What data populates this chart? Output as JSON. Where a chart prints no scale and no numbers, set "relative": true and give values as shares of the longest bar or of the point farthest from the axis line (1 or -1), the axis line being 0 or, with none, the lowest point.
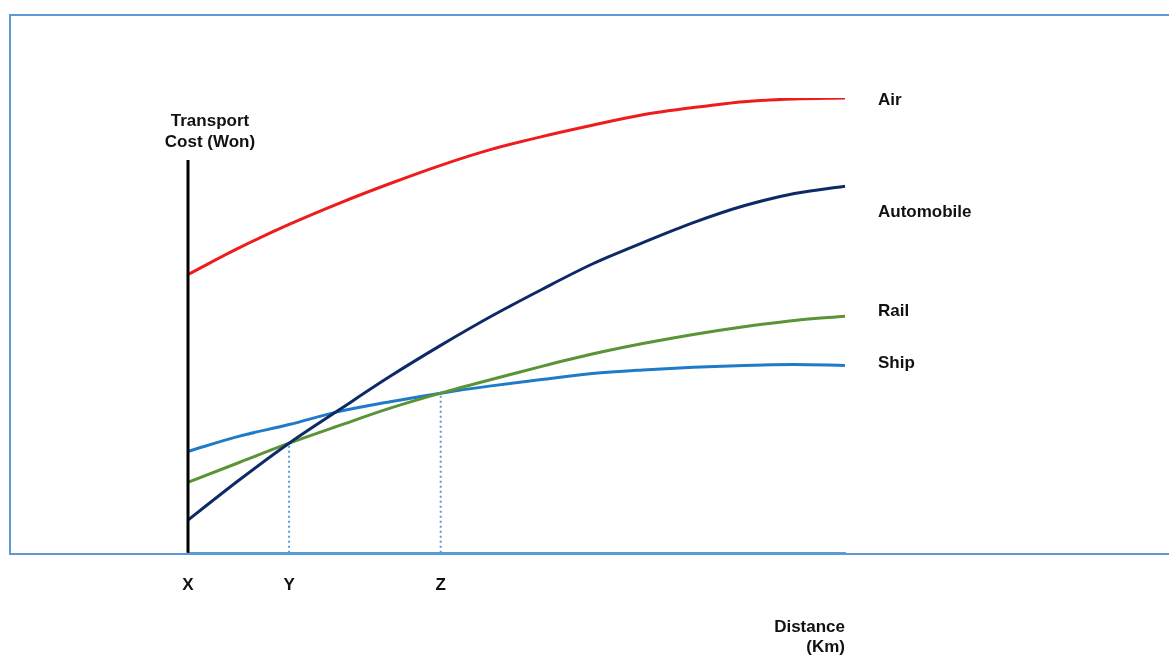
{
  "chart_data": {
    "type": "line",
    "relative": true,
    "xlabel": "Distance (Km)",
    "ylabel": "Transport Cost (Won)",
    "categories": [
      "X",
      null,
      "Y",
      null,
      null,
      "Z",
      null,
      null,
      null,
      null,
      null,
      null,
      null,
      null
    ],
    "series": [
      {
        "name": "Air",
        "color": "#ee1c1c",
        "values": [
          0.612,
          0.67,
          0.722,
          0.769,
          0.812,
          0.852,
          0.887,
          0.915,
          0.94,
          0.963,
          0.979,
          0.992,
          0.998,
          1
        ]
      },
      {
        "name": "Automobile",
        "color": "#0e2a66",
        "values": [
          0.072,
          0.159,
          0.241,
          0.315,
          0.388,
          0.456,
          0.52,
          0.579,
          0.635,
          0.682,
          0.726,
          0.763,
          0.79,
          0.806
        ]
      },
      {
        "name": "Rail",
        "color": "#5b9337",
        "values": [
          0.155,
          0.198,
          0.241,
          0.28,
          0.318,
          0.351,
          0.381,
          0.41,
          0.437,
          0.46,
          0.48,
          0.497,
          0.511,
          0.52
        ]
      },
      {
        "name": "Ship",
        "color": "#1f7bc8",
        "values": [
          0.223,
          0.256,
          0.282,
          0.311,
          0.332,
          0.351,
          0.367,
          0.381,
          0.394,
          0.402,
          0.408,
          0.412,
          0.414,
          0.412
        ]
      }
    ],
    "ref_lines": [
      {
        "axis": "x",
        "value": "Y",
        "color": "#5b9bd5",
        "line_style": "dotted"
      },
      {
        "axis": "x",
        "value": "Z",
        "color": "#5b9bd5",
        "line_style": "dotted"
      }
    ],
    "marker": "none",
    "line_style": "solid",
    "grid": false,
    "legend": false
  }
}
